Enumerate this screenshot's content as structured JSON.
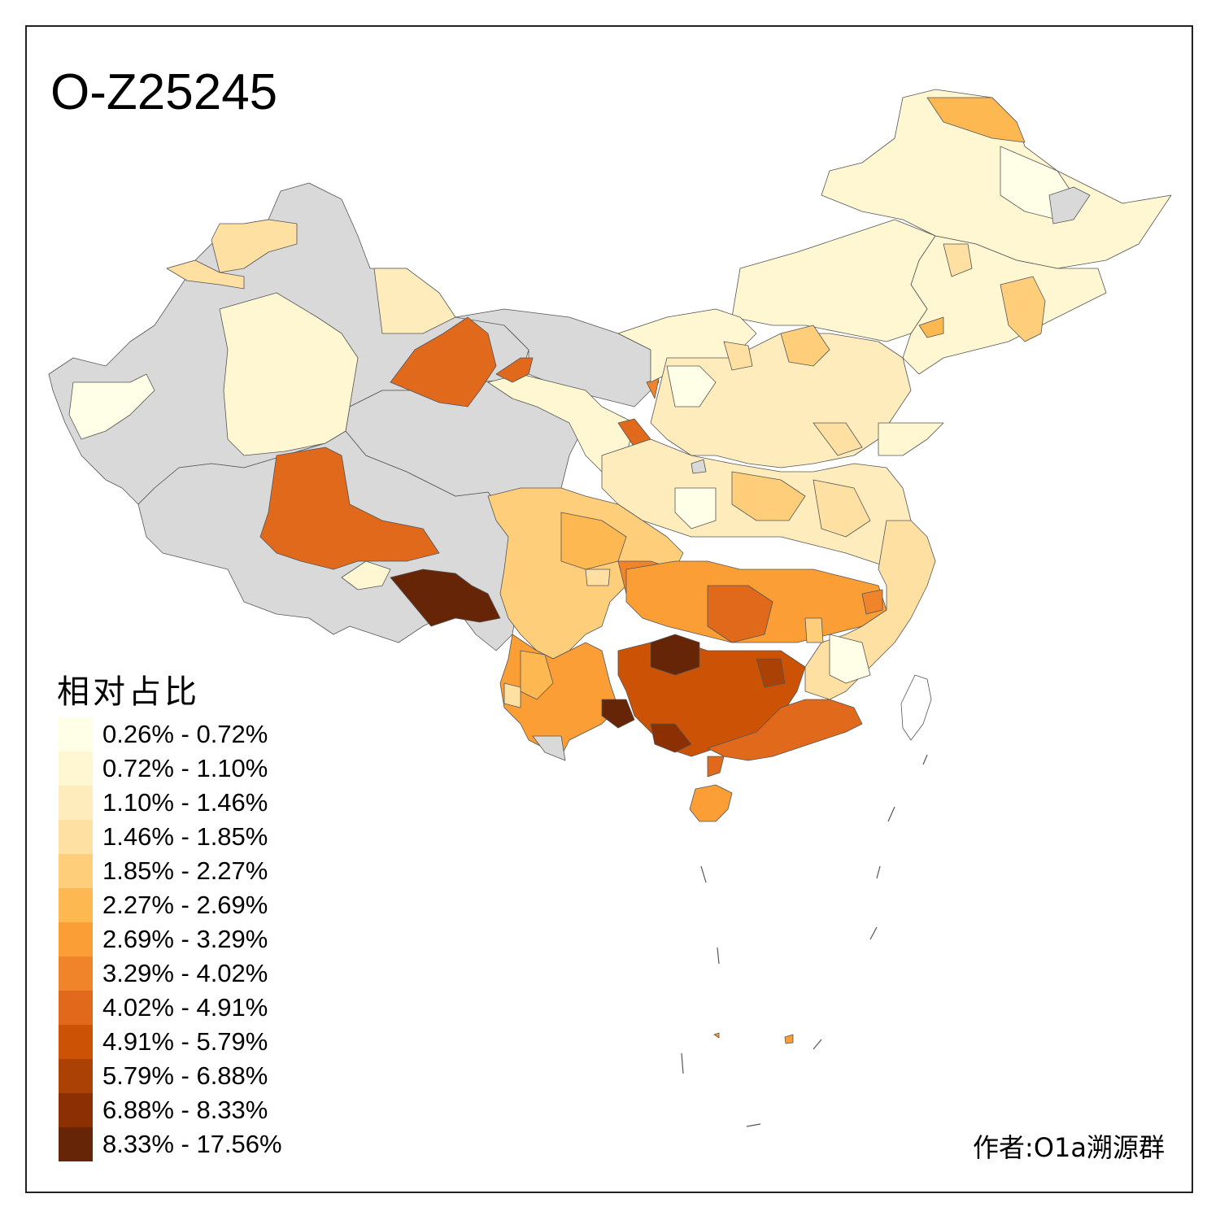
{
  "title": "O-Z25245",
  "legend": {
    "title": "相对占比",
    "items": [
      {
        "label": "0.26% - 0.72%",
        "color": "#fffee6"
      },
      {
        "label": "0.72% - 1.10%",
        "color": "#fff6d2"
      },
      {
        "label": "1.10% - 1.46%",
        "color": "#feecbc"
      },
      {
        "label": "1.46% - 1.85%",
        "color": "#fee0a2"
      },
      {
        "label": "1.85% - 2.27%",
        "color": "#fece7a"
      },
      {
        "label": "2.27% - 2.69%",
        "color": "#fdb852"
      },
      {
        "label": "2.69% - 3.29%",
        "color": "#fa9e35"
      },
      {
        "label": "3.29% - 4.02%",
        "color": "#f0842a"
      },
      {
        "label": "4.02% - 4.91%",
        "color": "#e0691b"
      },
      {
        "label": "4.91% - 5.79%",
        "color": "#cc5206"
      },
      {
        "label": "5.79% - 6.88%",
        "color": "#ab4104"
      },
      {
        "label": "6.88% - 8.33%",
        "color": "#8c3004"
      },
      {
        "label": "8.33% - 17.56%",
        "color": "#662506"
      }
    ]
  },
  "no_data_color": "#d9d9d9",
  "author": "作者:O1a溯源群"
}
